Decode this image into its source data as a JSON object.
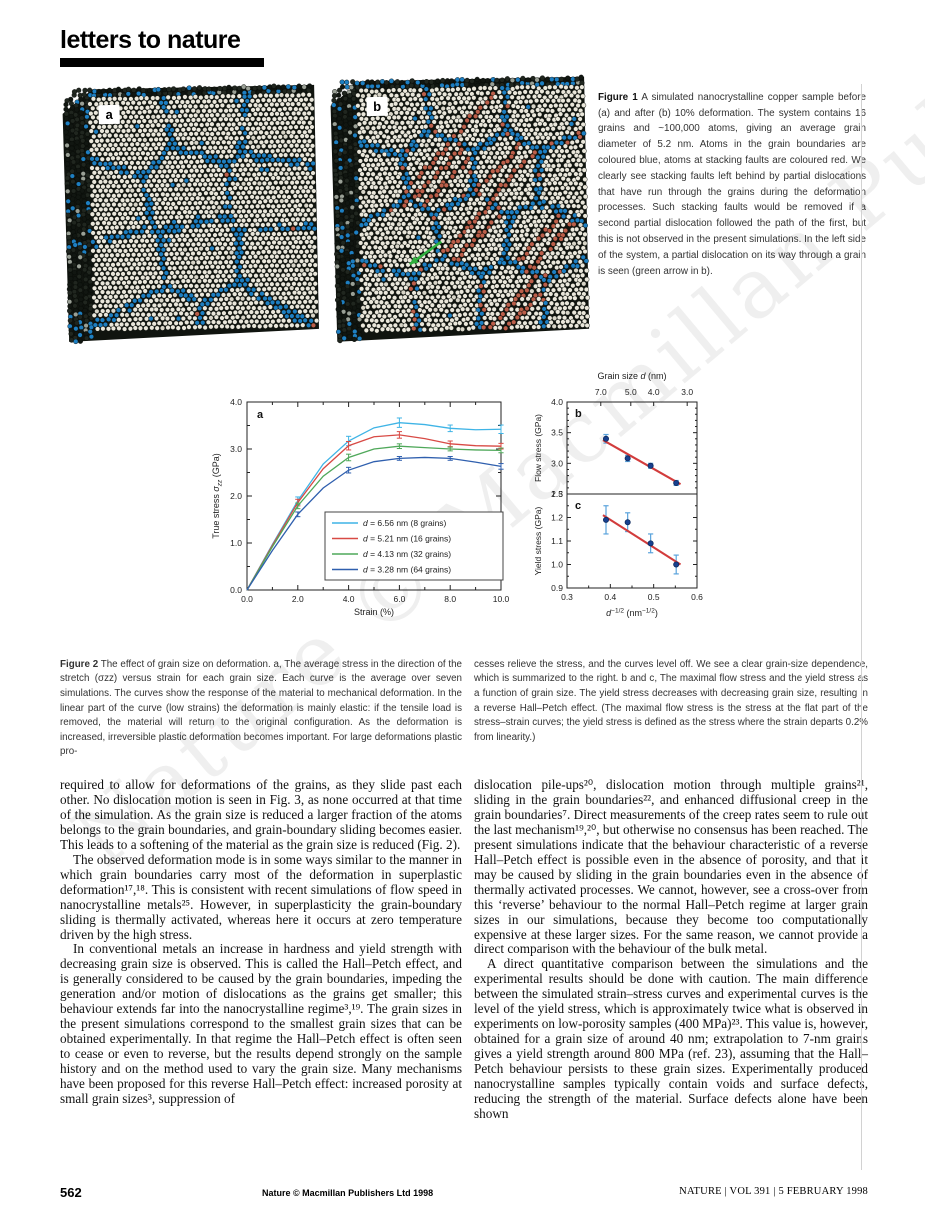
{
  "header": {
    "title": "letters to nature"
  },
  "watermark": "Nature © Macmillan Publishers Ltd 1998",
  "figure1": {
    "label_a": "a",
    "label_b": "b",
    "caption_lead": "Figure 1",
    "caption_rest": " A simulated nanocrystalline copper sample before (a) and after (b) 10% deformation. The system contains 16 grains and ~100,000 atoms, giving an average grain diameter of 5.2 nm. Atoms in the grain boundaries are coloured blue, atoms at stacking faults are coloured red. We clearly see stacking faults left behind by partial dislocations that have run through the grains during the deformation processes. Such stacking faults would be removed if a second partial dislocation followed the path of the first, but this is not observed in the present simulations. In the left side of the system, a partial dislocation on its way through a grain is seen (green arrow in b).",
    "colors": {
      "boundary_blue": "#1e7fc2",
      "grain_white": "#eae7db",
      "fault_red": "#bc5f4a",
      "dark_atom": "#20261f",
      "darker_atom": "#111611",
      "background": "#10140f",
      "arrow_green": "#2fae3e"
    }
  },
  "chart_data": [
    {
      "type": "line",
      "panel": "a",
      "xlabel": "Strain (%)",
      "ylabel": "True stress σzz (GPa)",
      "xlim": [
        0,
        10
      ],
      "ylim": [
        0,
        4
      ],
      "xticks": [
        0,
        2,
        4,
        6,
        8,
        10
      ],
      "yticks": [
        0,
        1,
        2,
        3,
        4
      ],
      "x": [
        0,
        1,
        2,
        3,
        4,
        5,
        6,
        7,
        8,
        9,
        10
      ],
      "error_x": [
        2,
        4,
        6,
        8,
        10
      ],
      "legend_position": "lower right",
      "series": [
        {
          "name": "d = 6.56 nm (8 grains)",
          "color": "#3fb4e6",
          "values": [
            0,
            0.97,
            1.9,
            2.68,
            3.17,
            3.45,
            3.56,
            3.52,
            3.44,
            3.41,
            3.42
          ],
          "errors": [
            0.08,
            0.1,
            0.1,
            0.07,
            0.09
          ]
        },
        {
          "name": "d = 5.21 nm (16 grains)",
          "color": "#d84a45",
          "values": [
            0,
            0.95,
            1.86,
            2.58,
            3.07,
            3.26,
            3.3,
            3.22,
            3.11,
            3.07,
            3.06
          ],
          "errors": [
            0.07,
            0.09,
            0.07,
            0.06,
            0.06
          ]
        },
        {
          "name": "d = 4.13 nm (32 grains)",
          "color": "#4fa85a",
          "values": [
            0,
            0.92,
            1.79,
            2.42,
            2.82,
            3.0,
            3.06,
            3.03,
            3.0,
            2.98,
            2.97
          ],
          "errors": [
            0.06,
            0.07,
            0.05,
            0.04,
            0.05
          ]
        },
        {
          "name": "d = 3.28 nm (64 grains)",
          "color": "#2f5fae",
          "values": [
            0,
            0.84,
            1.61,
            2.17,
            2.55,
            2.73,
            2.8,
            2.82,
            2.8,
            2.72,
            2.63
          ],
          "errors": [
            0.05,
            0.06,
            0.04,
            0.04,
            0.06
          ]
        }
      ]
    },
    {
      "type": "scatter",
      "panel": "b",
      "ylabel": "Flow stress (GPa)",
      "ylim": [
        2.5,
        4.0
      ],
      "yticks": [
        2.5,
        3.0,
        3.5,
        4.0
      ],
      "top_axis": {
        "label": "Grain size d (nm)",
        "ticks": [
          {
            "label": "7.0",
            "d": 7.0
          },
          {
            "label": "5.0",
            "d": 5.0
          },
          {
            "label": "4.0",
            "d": 4.0
          },
          {
            "label": "3.0",
            "d": 3.0
          }
        ]
      },
      "points": [
        {
          "x": 0.39,
          "y": 3.4,
          "err": 0.07
        },
        {
          "x": 0.44,
          "y": 3.08,
          "err": 0.05
        },
        {
          "x": 0.493,
          "y": 2.96,
          "err": 0.04
        },
        {
          "x": 0.552,
          "y": 2.68,
          "err": 0.04
        }
      ],
      "fit_line": {
        "x1": 0.383,
        "y1": 3.38,
        "x2": 0.562,
        "y2": 2.66,
        "color": "#d23c3c"
      },
      "marker_color": "#17408f",
      "errorbar_color": "#5aa3dc"
    },
    {
      "type": "scatter",
      "panel": "c",
      "xlabel": "d−1/2 (nm−1/2)",
      "ylabel": "Yield stress (GPa)",
      "xlim": [
        0.3,
        0.6
      ],
      "xticks": [
        0.3,
        0.4,
        0.5,
        0.6
      ],
      "ylim": [
        0.9,
        1.3
      ],
      "yticks": [
        0.9,
        1.0,
        1.1,
        1.2,
        1.3
      ],
      "points": [
        {
          "x": 0.39,
          "y": 1.19,
          "err": 0.06
        },
        {
          "x": 0.44,
          "y": 1.18,
          "err": 0.04
        },
        {
          "x": 0.493,
          "y": 1.09,
          "err": 0.04
        },
        {
          "x": 0.552,
          "y": 1.0,
          "err": 0.04
        }
      ],
      "fit_line": {
        "x1": 0.383,
        "y1": 1.21,
        "x2": 0.562,
        "y2": 1.0,
        "color": "#d23c3c"
      },
      "marker_color": "#17408f",
      "errorbar_color": "#5aa3dc"
    }
  ],
  "figure2": {
    "caption_lead": "Figure 2",
    "caption_left_rest": " The effect of grain size on deformation. a, The average stress in the direction of the stretch (σzz) versus strain for each grain size. Each curve is the average over seven simulations. The curves show the response of the material to mechanical deformation. In the linear part of the curve (low strains) the deformation is mainly elastic: if the tensile load is removed, the material will return to the original configuration. As the deformation is increased, irreversible plastic deformation becomes important. For large deformations plastic pro-",
    "caption_right": "cesses relieve the stress, and the curves level off. We see a clear grain-size dependence, which is summarized to the right. b and c, The maximal flow stress and the yield stress as a function of grain size. The yield stress decreases with decreasing grain size, resulting in a reverse Hall–Petch effect. (The maximal flow stress is the stress at the flat part of the stress–strain curves; the yield stress is defined as the stress where the strain departs 0.2% from linearity.)"
  },
  "body": {
    "left": [
      "required to allow for deformations of the grains, as they slide past each other. No dislocation motion is seen in Fig. 3, as none occurred at that time of the simulation. As the grain size is reduced a larger fraction of the atoms belongs to the grain boundaries, and grain-boundary sliding becomes easier. This leads to a softening of the material as the grain size is reduced (Fig. 2).",
      "The observed deformation mode is in some ways similar to the manner in which grain boundaries carry most of the deformation in superplastic deformation¹⁷,¹⁸. This is consistent with recent simulations of flow speed in nanocrystalline metals²⁵. However, in superplasticity the grain-boundary sliding is thermally activated, whereas here it occurs at zero temperature driven by the high stress.",
      "In conventional metals an increase in hardness and yield strength with decreasing grain size is observed. This is called the Hall–Petch effect, and is generally considered to be caused by the grain boundaries, impeding the generation and/or motion of dislocations as the grains get smaller; this behaviour extends far into the nanocrystalline regime³,¹⁹. The grain sizes in the present simulations correspond to the smallest grain sizes that can be obtained experimentally. In that regime the Hall–Petch effect is often seen to cease or even to reverse, but the results depend strongly on the sample history and on the method used to vary the grain size. Many mechanisms have been proposed for this reverse Hall–Petch effect: increased porosity at small grain sizes³, suppression of"
    ],
    "right": [
      "dislocation pile-ups²⁰, dislocation motion through multiple grains²¹, sliding in the grain boundaries²², and enhanced diffusional creep in the grain boundaries⁷. Direct measurements of the creep rates seem to rule out the last mechanism¹⁹,²⁰, but otherwise no consensus has been reached. The present simulations indicate that the behaviour characteristic of a reverse Hall–Petch effect is possible even in the absence of porosity, and that it may be caused by sliding in the grain boundaries even in the absence of thermally activated processes. We cannot, however, see a cross-over from this ‘reverse’ behaviour to the normal Hall–Petch regime at larger grain sizes in our simulations, because they become too computationally expensive at these larger sizes. For the same reason, we cannot provide a direct comparison with the behaviour of the bulk metal.",
      "A direct quantitative comparison between the simulations and the experimental results should be done with caution. The main difference between the simulated strain–stress curves and experimental curves is the level of the yield stress, which is approximately twice what is observed in experiments on low-porosity samples (400 MPa)²³. This value is, however, obtained for a grain size of around 40 nm; extrapolation to 7-nm grains gives a yield strength around 800 MPa (ref. 23), assuming that the Hall–Petch behaviour persists to these grain sizes. Experimentally produced nanocrystalline samples typically contain voids and surface defects, reducing the strength of the material. Surface defects alone have been shown"
    ]
  },
  "footer": {
    "page_number": "562",
    "credit": "Nature © Macmillan Publishers Ltd 1998",
    "issue": "NATURE | VOL 391 | 5 FEBRUARY 1998"
  }
}
